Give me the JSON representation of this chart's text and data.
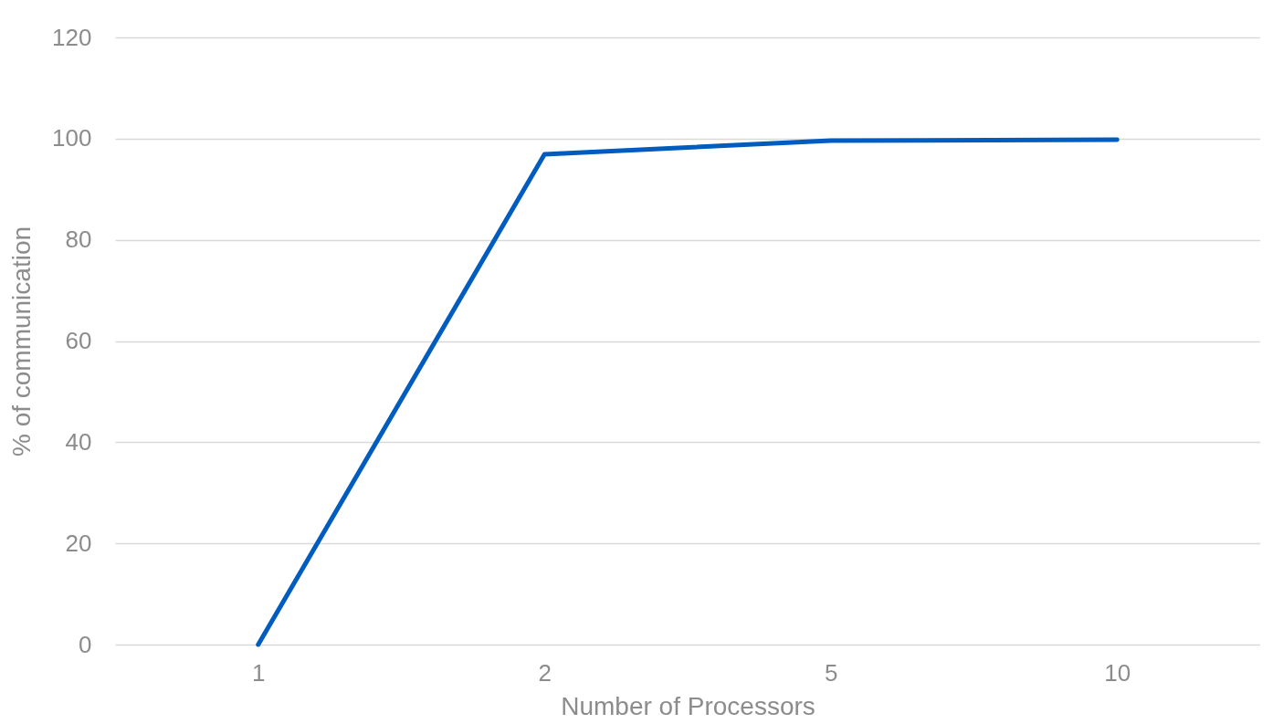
{
  "chart_data": {
    "type": "line",
    "xlabel": "Number of Processors",
    "ylabel": "% of communication",
    "categories": [
      "1",
      "2",
      "5",
      "10"
    ],
    "series": [
      {
        "color": "#005cbf",
        "values": [
          0,
          96.9,
          99.6,
          99.8
        ]
      }
    ],
    "ylim": [
      0,
      120
    ],
    "yticks": [
      0,
      20,
      40,
      60,
      80,
      100,
      120
    ],
    "grid": "y",
    "legend": false,
    "marker": "none",
    "line_style": "solid"
  }
}
